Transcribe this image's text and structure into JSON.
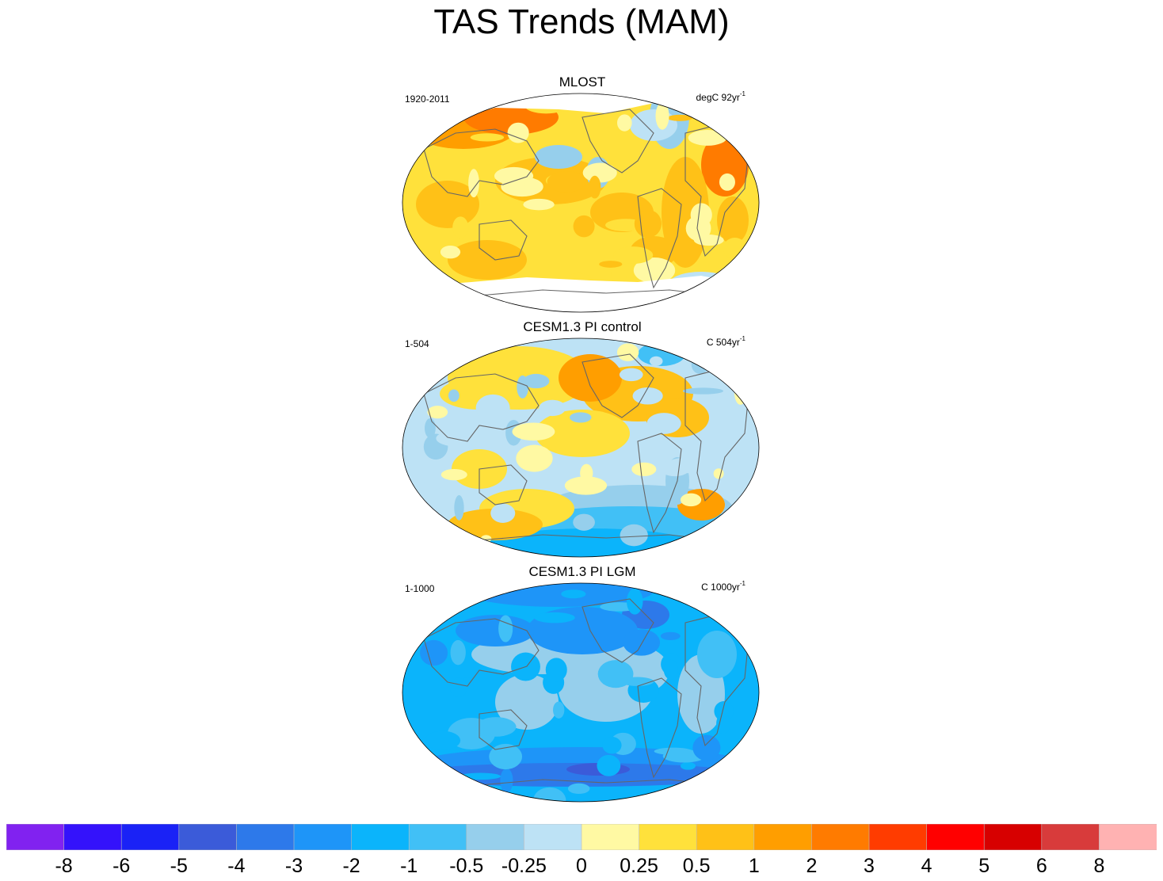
{
  "title": "TAS Trends (MAM)",
  "panels": [
    {
      "title": "MLOST",
      "period": "1920-2011",
      "units": "degC 92yr",
      "units_sup": "-1",
      "base_level": 11,
      "missing_poles": true
    },
    {
      "title": "CESM1.3 PI control",
      "period": "1-504",
      "units": "C 504yr",
      "units_sup": "-1",
      "base_level": 9,
      "missing_poles": false
    },
    {
      "title": "CESM1.3 PI LGM",
      "period": "1-1000",
      "units": "C 1000yr",
      "units_sup": "-1",
      "base_level": 6,
      "missing_poles": false
    }
  ],
  "colorbar": {
    "colors": [
      "#8122f0",
      "#3412fb",
      "#1a22f6",
      "#3b5bd9",
      "#2d79ea",
      "#1e95f8",
      "#0bb4fb",
      "#41c0f6",
      "#96cfec",
      "#bde2f5",
      "#fff9a3",
      "#ffe13b",
      "#ffc117",
      "#ff9e00",
      "#ff7b00",
      "#ff3c00",
      "#ff0000",
      "#d70000",
      "#d83b3b",
      "#ffb2b2"
    ],
    "labels": [
      "-8",
      "-6",
      "-5",
      "-4",
      "-3",
      "-2",
      "-1",
      "-0.5",
      "-0.25",
      "0",
      "0.25",
      "0.5",
      "1",
      "2",
      "3",
      "4",
      "5",
      "6",
      "8"
    ]
  },
  "chart_data": [
    {
      "type": "heatmap",
      "title": "MLOST",
      "period": "1920-2011",
      "units": "degC 92yr-1",
      "description_values": {
        "dominant_range": [
          0.5,
          1
        ],
        "max_range": [
          1,
          2
        ],
        "min_range": [
          -0.5,
          -0.25
        ]
      }
    },
    {
      "type": "heatmap",
      "title": "CESM1.3 PI control",
      "period": "1-504",
      "units": "C 504yr-1",
      "description_values": {
        "dominant_range": [
          0,
          0.25
        ],
        "max_range": [
          1,
          2
        ],
        "min_range": [
          -1,
          -0.5
        ]
      }
    },
    {
      "type": "heatmap",
      "title": "CESM1.3 PI LGM",
      "period": "1-1000",
      "units": "C 1000yr-1",
      "description_values": {
        "dominant_range": [
          -1,
          -0.5
        ],
        "max_range": [
          -0.5,
          -0.25
        ],
        "min_range": [
          -3,
          -2
        ]
      }
    }
  ]
}
